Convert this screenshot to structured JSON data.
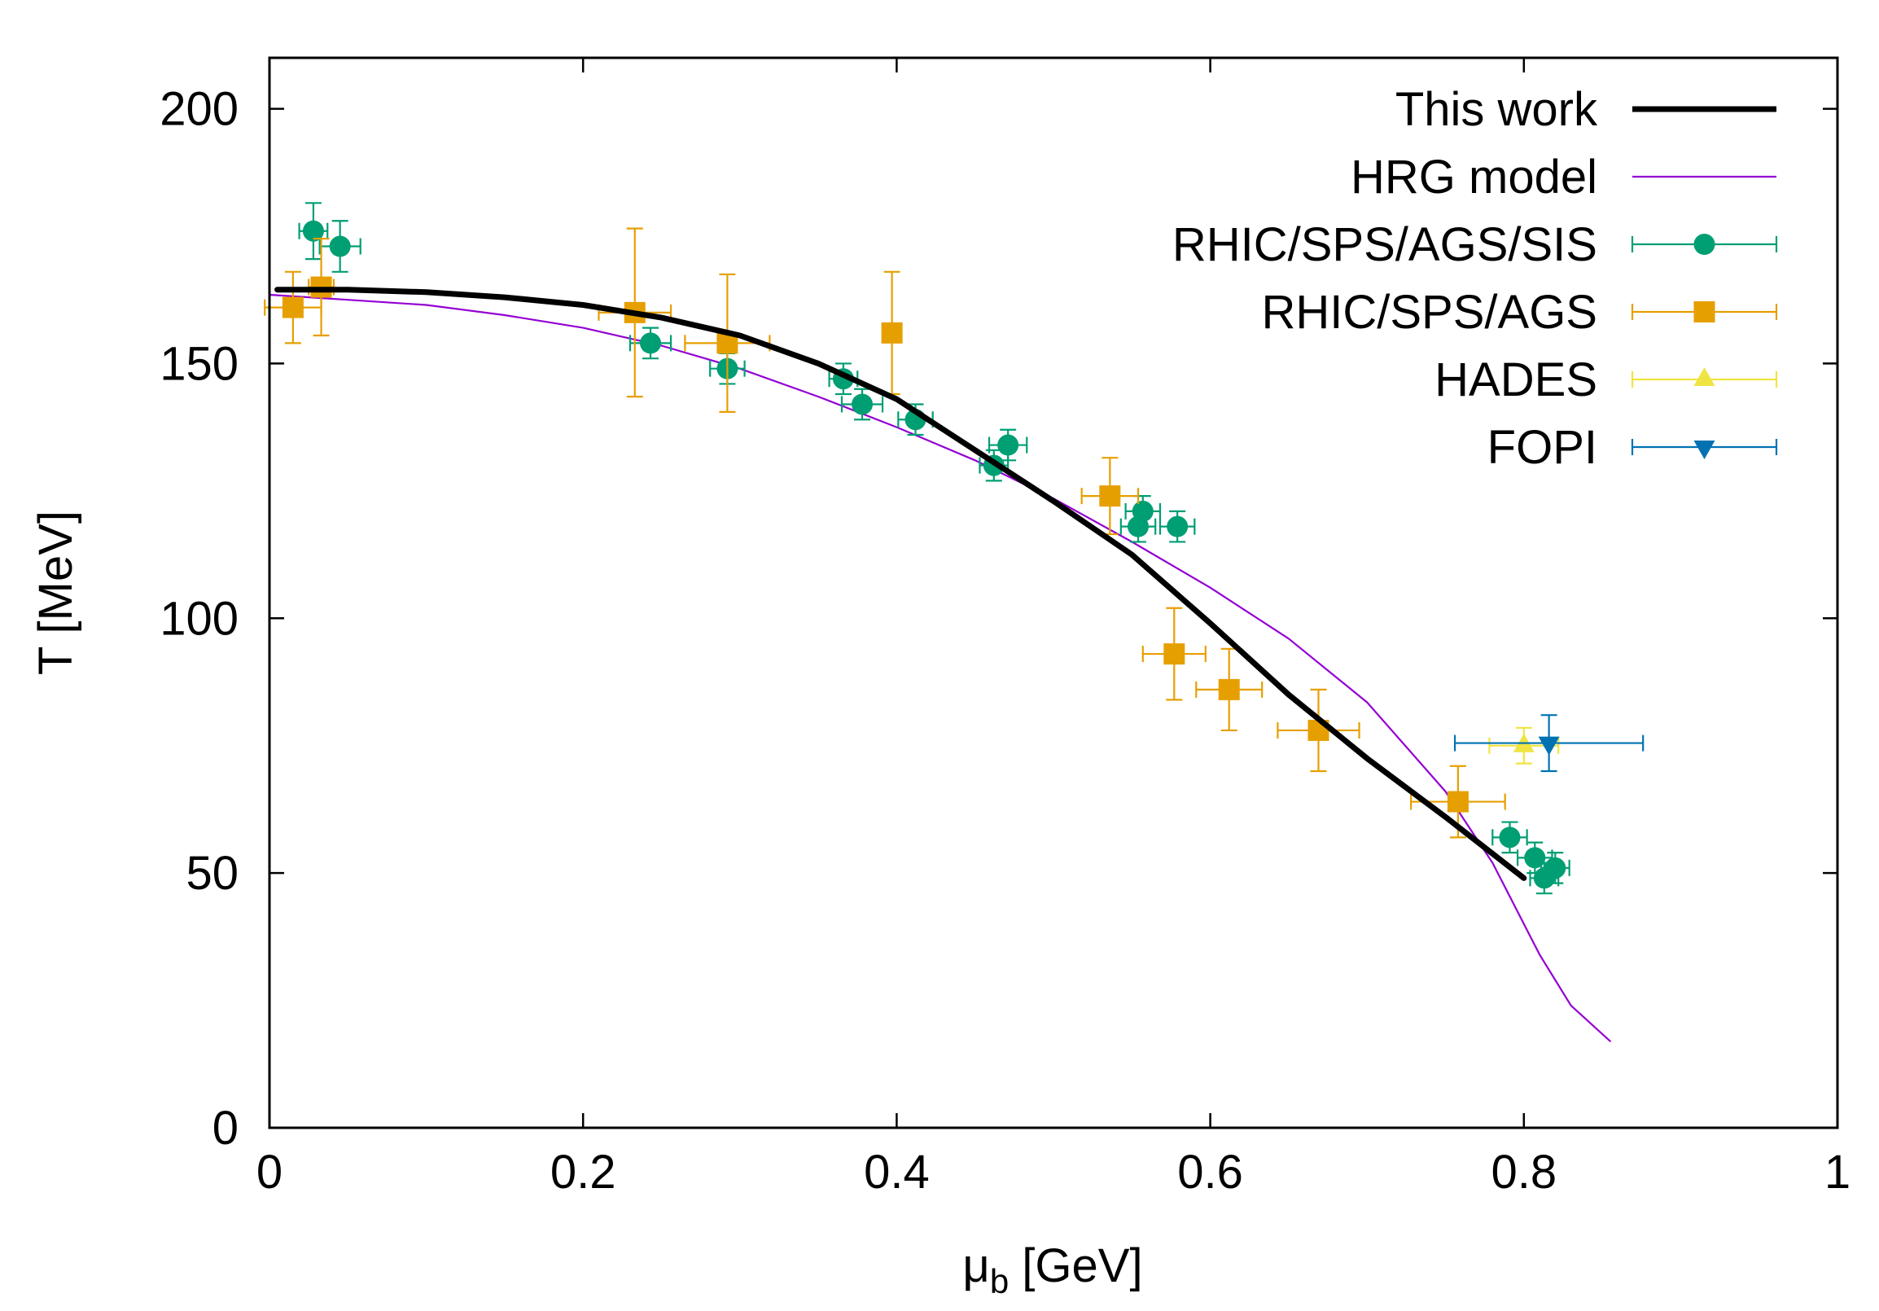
{
  "chart_data": {
    "type": "scatter",
    "xlabel_main": "μ",
    "xlabel_sub": "b",
    "xlabel_rest": " [GeV]",
    "ylabel": "T [MeV]",
    "xlim": [
      0,
      1
    ],
    "ylim": [
      0,
      210
    ],
    "grid": false,
    "legend_position": "top-right",
    "x_ticks": [
      {
        "value": 0,
        "label": "0"
      },
      {
        "value": 0.2,
        "label": "0.2"
      },
      {
        "value": 0.4,
        "label": "0.4"
      },
      {
        "value": 0.6,
        "label": "0.6"
      },
      {
        "value": 0.8,
        "label": "0.8"
      },
      {
        "value": 1,
        "label": "1"
      }
    ],
    "y_ticks": [
      {
        "value": 0,
        "label": "0"
      },
      {
        "value": 50,
        "label": "50"
      },
      {
        "value": 100,
        "label": "100"
      },
      {
        "value": 150,
        "label": "150"
      },
      {
        "value": 200,
        "label": "200"
      }
    ],
    "series": [
      {
        "name": "This work",
        "kind": "line",
        "color": "#000000",
        "width": "thick",
        "points": [
          [
            0.005,
            164.5
          ],
          [
            0.05,
            164.5
          ],
          [
            0.1,
            164
          ],
          [
            0.15,
            163
          ],
          [
            0.2,
            161.5
          ],
          [
            0.25,
            159
          ],
          [
            0.3,
            155.5
          ],
          [
            0.35,
            150
          ],
          [
            0.4,
            143
          ],
          [
            0.45,
            133
          ],
          [
            0.5,
            123
          ],
          [
            0.55,
            112.5
          ],
          [
            0.6,
            99
          ],
          [
            0.65,
            85
          ],
          [
            0.7,
            72.5
          ],
          [
            0.75,
            61
          ],
          [
            0.8,
            49
          ]
        ]
      },
      {
        "name": "HRG model",
        "kind": "line",
        "color": "#9400d3",
        "width": "thin",
        "points": [
          [
            0.0,
            163.5
          ],
          [
            0.05,
            162.5
          ],
          [
            0.1,
            161.5
          ],
          [
            0.15,
            159.5
          ],
          [
            0.2,
            157
          ],
          [
            0.25,
            153.5
          ],
          [
            0.3,
            149
          ],
          [
            0.35,
            143.5
          ],
          [
            0.4,
            137.5
          ],
          [
            0.45,
            131
          ],
          [
            0.5,
            123.5
          ],
          [
            0.55,
            115
          ],
          [
            0.6,
            106
          ],
          [
            0.65,
            96
          ],
          [
            0.7,
            83.5
          ],
          [
            0.75,
            66
          ],
          [
            0.78,
            52
          ],
          [
            0.81,
            34
          ],
          [
            0.83,
            24
          ],
          [
            0.855,
            17
          ]
        ]
      },
      {
        "name": "RHIC/SPS/AGS/SIS",
        "kind": "points",
        "marker": "circle",
        "color": "#009e73",
        "points": [
          {
            "x": 0.028,
            "y": 176,
            "xerr": 0.009,
            "yerr": 5.5
          },
          {
            "x": 0.045,
            "y": 173,
            "xerr": 0.013,
            "yerr": 5
          },
          {
            "x": 0.243,
            "y": 154,
            "xerr": 0.013,
            "yerr": 3
          },
          {
            "x": 0.292,
            "y": 149,
            "xerr": 0.011,
            "yerr": 3
          },
          {
            "x": 0.366,
            "y": 147,
            "xerr": 0.009,
            "yerr": 3
          },
          {
            "x": 0.378,
            "y": 142,
            "xerr": 0.013,
            "yerr": 3
          },
          {
            "x": 0.412,
            "y": 139,
            "xerr": 0.011,
            "yerr": 3
          },
          {
            "x": 0.462,
            "y": 130,
            "xerr": 0.009,
            "yerr": 3
          },
          {
            "x": 0.471,
            "y": 134,
            "xerr": 0.012,
            "yerr": 3
          },
          {
            "x": 0.554,
            "y": 118,
            "xerr": 0.011,
            "yerr": 3
          },
          {
            "x": 0.557,
            "y": 121,
            "xerr": 0.011,
            "yerr": 3
          },
          {
            "x": 0.579,
            "y": 118,
            "xerr": 0.011,
            "yerr": 3
          },
          {
            "x": 0.791,
            "y": 57,
            "xerr": 0.011,
            "yerr": 3
          },
          {
            "x": 0.807,
            "y": 53,
            "xerr": 0.011,
            "yerr": 3
          },
          {
            "x": 0.813,
            "y": 49,
            "xerr": 0.009,
            "yerr": 3
          },
          {
            "x": 0.82,
            "y": 51,
            "xerr": 0.009,
            "yerr": 3
          }
        ]
      },
      {
        "name": "RHIC/SPS/AGS",
        "kind": "points",
        "marker": "square",
        "color": "#e69f00",
        "points": [
          {
            "x": 0.015,
            "y": 161,
            "xerr": 0.018,
            "yerr": 7
          },
          {
            "x": 0.033,
            "y": 165,
            "xerr": 0.008,
            "yerr": 9.5
          },
          {
            "x": 0.233,
            "y": 160,
            "xerr": 0.023,
            "yerr": 16.5
          },
          {
            "x": 0.292,
            "y": 154,
            "xerr": 0.027,
            "yerr": 13.5
          },
          {
            "x": 0.397,
            "y": 156,
            "xerr": 0.004,
            "yerr": 12
          },
          {
            "x": 0.536,
            "y": 124,
            "xerr": 0.018,
            "yerr": 7.5
          },
          {
            "x": 0.577,
            "y": 93,
            "xerr": 0.02,
            "yerr": 9
          },
          {
            "x": 0.612,
            "y": 86,
            "xerr": 0.021,
            "yerr": 8
          },
          {
            "x": 0.669,
            "y": 78,
            "xerr": 0.026,
            "yerr": 8
          },
          {
            "x": 0.758,
            "y": 64,
            "xerr": 0.03,
            "yerr": 7
          }
        ]
      },
      {
        "name": "HADES",
        "kind": "points",
        "marker": "triangle-up",
        "color": "#f0e442",
        "points": [
          {
            "x": 0.8,
            "y": 75,
            "xerr": 0.022,
            "yerr": 3.5
          }
        ]
      },
      {
        "name": "FOPI",
        "kind": "points",
        "marker": "triangle-down",
        "color": "#0072b2",
        "points": [
          {
            "x": 0.816,
            "y": 75.5,
            "xerr": 0.06,
            "yerr": 5.5
          }
        ]
      }
    ]
  }
}
